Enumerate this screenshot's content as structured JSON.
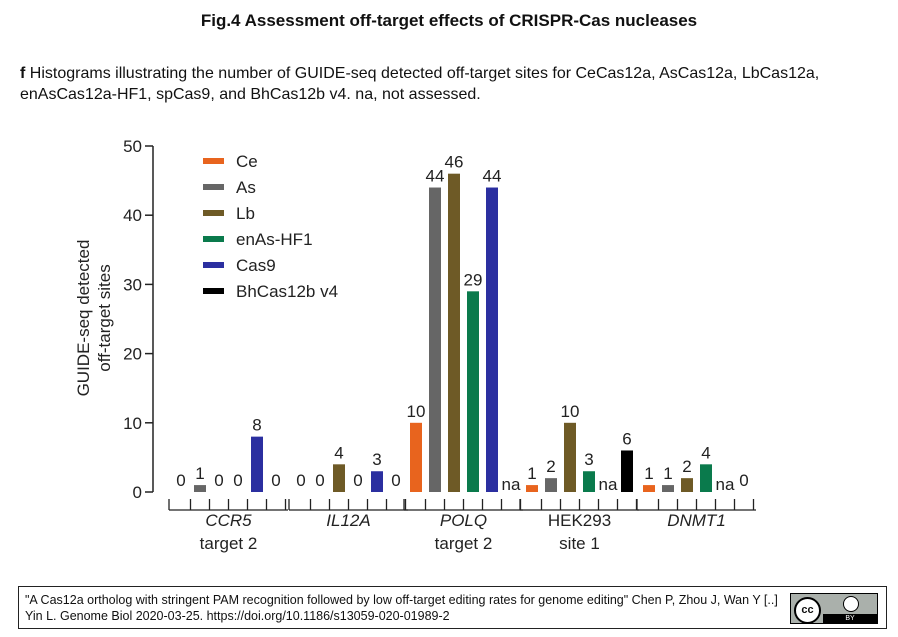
{
  "header": {
    "figure_title": "Fig.4 Assessment off-target effects of CRISPR-Cas nucleases",
    "panel_letter": "f",
    "caption": "Histograms illustrating the number of GUIDE-seq detected off-target sites for CeCas12a, AsCas12a, LbCas12a, enAsCas12a-HF1, spCas9, and BhCas12b v4. na, not assessed."
  },
  "chart_data": {
    "type": "bar",
    "ylabel_line1": "GUIDE-seq detected",
    "ylabel_line2": "off-target sites",
    "ylim": [
      0,
      50
    ],
    "yticks": [
      0,
      10,
      20,
      30,
      40,
      50
    ],
    "legend_position": "top-left",
    "series": [
      {
        "name": "Ce",
        "color": "#e8641e"
      },
      {
        "name": "As",
        "color": "#666666"
      },
      {
        "name": "Lb",
        "color": "#6e5a26"
      },
      {
        "name": "enAs-HF1",
        "color": "#0a7a4c"
      },
      {
        "name": "Cas9",
        "color": "#2b2fa0"
      },
      {
        "name": "BhCas12b v4",
        "color": "#000000"
      }
    ],
    "groups": [
      {
        "line1": "CCR5",
        "line2": "target 2",
        "italic": true,
        "values": [
          0,
          1,
          0,
          0,
          8,
          0
        ]
      },
      {
        "line1": "IL12A",
        "line2": "",
        "italic": true,
        "values": [
          0,
          0,
          4,
          0,
          3,
          0
        ]
      },
      {
        "line1": "POLQ",
        "line2": "target 2",
        "italic": true,
        "values": [
          10,
          44,
          46,
          29,
          44,
          "na"
        ]
      },
      {
        "line1": "HEK293",
        "line2": "site 1",
        "italic": false,
        "values": [
          1,
          2,
          10,
          3,
          "na",
          6
        ]
      },
      {
        "line1": "DNMT1",
        "line2": "",
        "italic": true,
        "values": [
          1,
          1,
          2,
          4,
          "na",
          0
        ]
      }
    ]
  },
  "citation": {
    "text": "\"A Cas12a ortholog with stringent PAM recognition followed by low off-target editing rates for genome editing\" Chen P, Zhou J, Wan Y [..] Yin L. Genome Biol 2020-03-25. https://doi.org/10.1186/s13059-020-01989-2",
    "license_cc": "cc",
    "license_by": "BY"
  }
}
